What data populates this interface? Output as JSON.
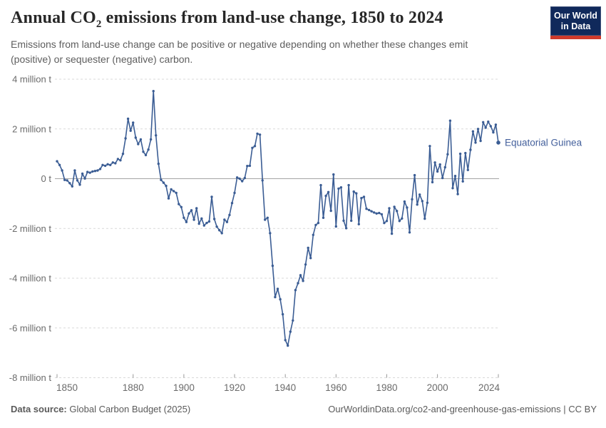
{
  "header": {
    "title_prefix": "Annual CO",
    "title_sub": "2",
    "title_suffix": " emissions from land-use change, 1850 to 2024",
    "subtitle_line1": "Emissions from land-use change can be positive or negative depending on whether these changes emit",
    "subtitle_line2": "(positive) or sequester (negative) carbon."
  },
  "logo": {
    "line1": "Our World",
    "line2": "in Data"
  },
  "colors": {
    "line": "#3b5d94",
    "series_label": "#44609c",
    "grid": "#d9d9d9",
    "zero_line": "#a3a3a3",
    "axis_text": "#6b6b6b",
    "tick_mark": "#9a9a9a",
    "logo_bg": "#10295b",
    "logo_red": "#cf3a2c",
    "title_text": "#272727",
    "subtitle_text": "#5e5e5e"
  },
  "chart_data": {
    "type": "line",
    "title": "Annual CO₂ emissions from land-use change, 1850 to 2024",
    "xlabel": "",
    "ylabel": "",
    "unit": "million t",
    "ylim": [
      -8,
      4
    ],
    "grid": "dashed-horizontal",
    "legend_position": "end-of-line-label",
    "series_name": "Equatorial Guinea",
    "year_start": 1850,
    "year_end": 2024,
    "x_ticks": [
      1850,
      1880,
      1900,
      1920,
      1940,
      1960,
      1980,
      2000,
      2024
    ],
    "y_ticks": [
      {
        "value": 4,
        "label": "4 million t"
      },
      {
        "value": 2,
        "label": "2 million t"
      },
      {
        "value": 0,
        "label": "0 t"
      },
      {
        "value": -2,
        "label": "-2 million t"
      },
      {
        "value": -4,
        "label": "-4 million t"
      },
      {
        "value": -6,
        "label": "-6 million t"
      },
      {
        "value": -8,
        "label": "-8 million t"
      }
    ],
    "values": [
      0.7,
      0.55,
      0.33,
      -0.05,
      -0.07,
      -0.18,
      -0.31,
      0.33,
      -0.07,
      -0.24,
      0.2,
      0.01,
      0.27,
      0.24,
      0.29,
      0.31,
      0.33,
      0.39,
      0.55,
      0.52,
      0.58,
      0.55,
      0.65,
      0.62,
      0.79,
      0.74,
      1.0,
      1.62,
      2.41,
      1.93,
      2.25,
      1.65,
      1.39,
      1.58,
      1.08,
      0.95,
      1.17,
      1.58,
      3.52,
      1.74,
      0.6,
      -0.05,
      -0.16,
      -0.29,
      -0.79,
      -0.43,
      -0.5,
      -0.57,
      -1.02,
      -1.14,
      -1.57,
      -1.74,
      -1.4,
      -1.27,
      -1.65,
      -1.19,
      -1.81,
      -1.6,
      -1.88,
      -1.78,
      -1.72,
      -0.73,
      -1.62,
      -1.93,
      -2.07,
      -2.19,
      -1.65,
      -1.74,
      -1.46,
      -0.98,
      -0.57,
      0.05,
      0.0,
      -0.1,
      0.03,
      0.51,
      0.52,
      1.24,
      1.31,
      1.81,
      1.77,
      -0.07,
      -1.65,
      -1.57,
      -2.19,
      -3.5,
      -4.76,
      -4.43,
      -4.85,
      -5.45,
      -6.49,
      -6.71,
      -6.15,
      -5.7,
      -4.48,
      -4.2,
      -3.88,
      -4.11,
      -3.45,
      -2.78,
      -3.19,
      -2.26,
      -1.86,
      -1.78,
      -0.26,
      -1.57,
      -0.69,
      -0.54,
      -1.29,
      0.17,
      -1.92,
      -0.4,
      -0.35,
      -1.69,
      -1.99,
      -0.26,
      -1.69,
      -0.52,
      -0.59,
      -1.83,
      -0.78,
      -0.73,
      -1.21,
      -1.26,
      -1.31,
      -1.36,
      -1.4,
      -1.38,
      -1.43,
      -1.78,
      -1.7,
      -1.19,
      -2.21,
      -1.13,
      -1.3,
      -1.7,
      -1.6,
      -0.92,
      -1.16,
      -2.16,
      -0.83,
      0.14,
      -1.04,
      -0.64,
      -0.9,
      -1.61,
      -0.97,
      1.31,
      -0.14,
      0.65,
      0.29,
      0.57,
      0.03,
      0.46,
      0.98,
      2.33,
      -0.38,
      0.11,
      -0.62,
      1.0,
      -0.11,
      1.03,
      0.35,
      1.16,
      1.9,
      1.45,
      2.0,
      1.52,
      2.27,
      2.05,
      2.29,
      2.11,
      1.86,
      2.17,
      1.45
    ]
  },
  "footer": {
    "source_label": "Data source:",
    "source_value": "Global Carbon Budget (2025)",
    "attribution": "OurWorldinData.org/co2-and-greenhouse-gas-emissions | CC BY"
  }
}
